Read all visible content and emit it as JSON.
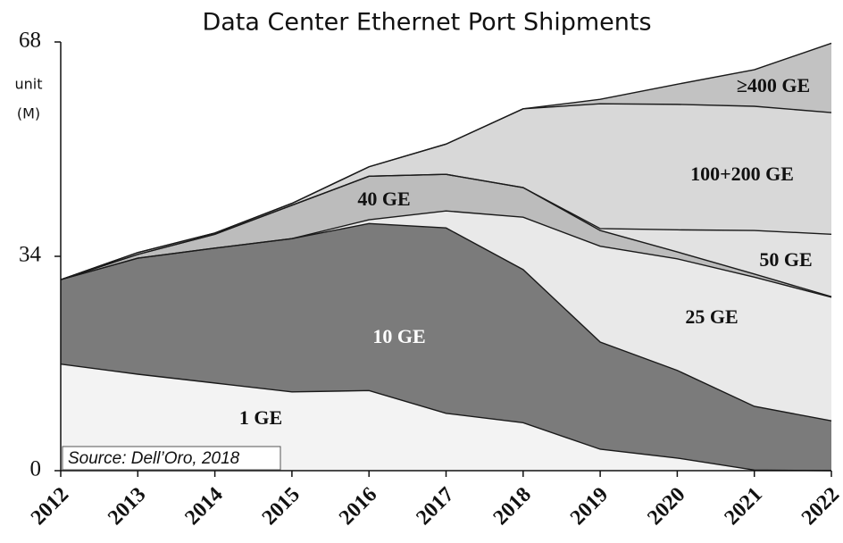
{
  "chart_data": {
    "type": "stacked_area",
    "title": "Data Center Ethernet Port Shipments",
    "ylabel_lines": [
      "unit",
      "(M)"
    ],
    "source": "Source: Dell’Oro, 2018",
    "categories": [
      "2012",
      "2013",
      "2014",
      "2015",
      "2016",
      "2017",
      "2018",
      "2019",
      "2020",
      "2021",
      "2022"
    ],
    "ylim": [
      0,
      68
    ],
    "yticks": [
      0,
      34,
      68
    ],
    "series": [
      {
        "name": "1 GE",
        "color": "#f3f3f3",
        "values": [
          16.9,
          15.3,
          13.9,
          12.5,
          12.7,
          9.1,
          7.6,
          3.4,
          2.0,
          0.1,
          0
        ]
      },
      {
        "name": "10 GE",
        "color": "#7b7b7b",
        "values": [
          13.4,
          18.4,
          21.4,
          24.3,
          26.5,
          29.4,
          24.3,
          17.0,
          13.9,
          10.1,
          7.9
        ]
      },
      {
        "name": "25 GE",
        "color": "#e9e9e9",
        "values": [
          0,
          0,
          0,
          0,
          0.6,
          2.7,
          8.3,
          15.2,
          17.7,
          20.5,
          19.6
        ]
      },
      {
        "name": "40 GE",
        "color": "#bcbcbc",
        "values": [
          0,
          0.6,
          2.2,
          5.3,
          6.9,
          5.8,
          4.7,
          2.5,
          1.1,
          0.5,
          0.1
        ]
      },
      {
        "name": "50 GE",
        "color": "#e2e2e2",
        "values": [
          0,
          0,
          0,
          0,
          0,
          0,
          0,
          0.3,
          3.5,
          6.9,
          9.9
        ]
      },
      {
        "name": "100+200 GE",
        "color": "#d8d8d8",
        "values": [
          0,
          0.3,
          0.2,
          0.3,
          1.5,
          4.8,
          12.5,
          19.8,
          19.9,
          19.7,
          19.3
        ]
      },
      {
        "name": "≥400 GE",
        "color": "#c2c2c2",
        "values": [
          0,
          0,
          0,
          0,
          0,
          0,
          0,
          0.7,
          3.2,
          5.8,
          11.0
        ]
      }
    ]
  }
}
